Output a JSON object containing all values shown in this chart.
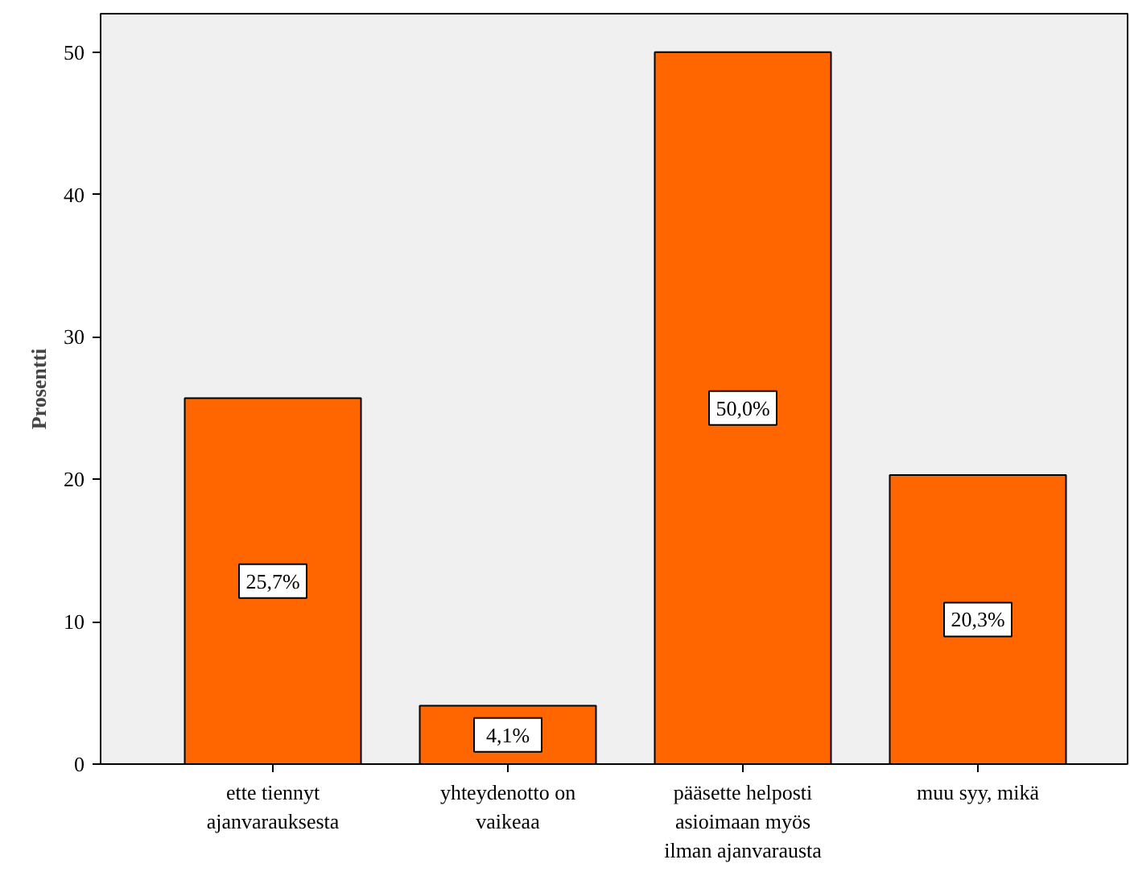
{
  "chart_data": {
    "type": "bar",
    "ylabel": "Prosentti",
    "categories": [
      "ette tiennyt\najanvarauksesta",
      "yhteydenotto on\nvaikeaa",
      "pääsette helposti\nasioimaan myös\nilman ajanvarausta",
      "muu syy, mikä"
    ],
    "values": [
      25.7,
      4.1,
      50.0,
      20.3
    ],
    "value_labels": [
      "25,7%",
      "4,1%",
      "50,0%",
      "20,3%"
    ],
    "color": "#ff6600",
    "ylim": [
      0,
      52.7
    ],
    "yticks": [
      0,
      10,
      20,
      30,
      40,
      50
    ],
    "grid": false
  }
}
